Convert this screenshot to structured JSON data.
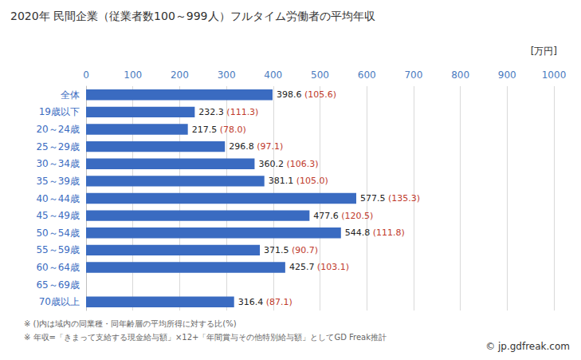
{
  "chart_data": {
    "type": "bar",
    "orientation": "horizontal",
    "title": "2020年 民間企業（従業者数100～999人）フルタイム労働者の平均年収",
    "xlabel": "[万円]",
    "categories": [
      "全体",
      "19歳以下",
      "20～24歳",
      "25～29歳",
      "30～34歳",
      "35～39歳",
      "40～44歳",
      "45～49歳",
      "50～54歳",
      "55～59歳",
      "60～64歳",
      "65～69歳",
      "70歳以上"
    ],
    "values": [
      398.6,
      232.3,
      217.5,
      296.8,
      360.2,
      381.1,
      577.5,
      477.6,
      544.8,
      371.5,
      425.7,
      null,
      316.4
    ],
    "value_labels": [
      "398.6 (105.6)",
      "232.3 (111.3)",
      "217.5 (78.0)",
      "296.8 (97.1)",
      "360.2 (106.3)",
      "381.1 (105.0)",
      "577.5 (135.3)",
      "477.6 (120.5)",
      "544.8 (111.8)",
      "371.5 (90.7)",
      "425.7 (103.1)",
      null,
      "316.4 (87.1)"
    ],
    "data_labels": true,
    "color": "#3a6bc1",
    "xlim": [
      0,
      1000
    ],
    "xticks": [
      0,
      100,
      200,
      300,
      400,
      500,
      600,
      700,
      800,
      900,
      1000
    ],
    "grid": true,
    "annotations": [
      "※ ()内は域内の同業種・同年齢層の平均所得に対する比(%)",
      "※ 年収=「きまって支給する現金給与額」×12+「年間賞与その他特別給与額」としてGD Freak推計",
      "© jp.gdfreak.com"
    ]
  }
}
